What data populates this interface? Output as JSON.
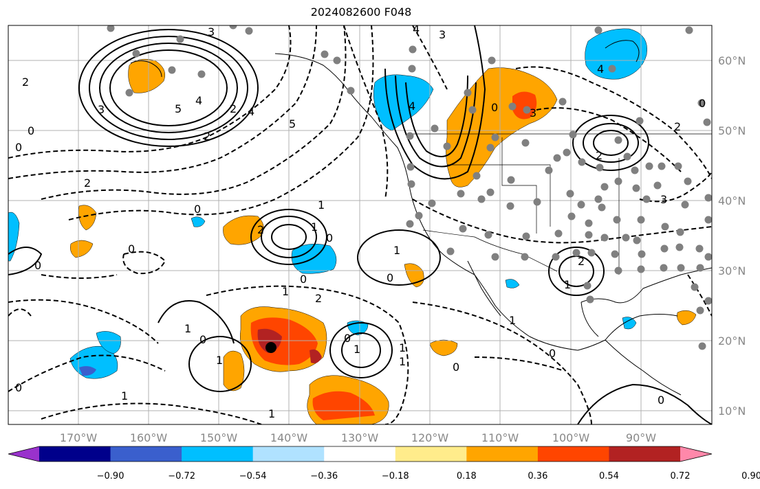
{
  "title": "2024082600 F048",
  "lon_ticks": [
    "170°W",
    "160°W",
    "150°W",
    "140°W",
    "130°W",
    "120°W",
    "110°W",
    "100°W",
    "90°W"
  ],
  "lat_ticks": [
    "60°N",
    "50°N",
    "40°N",
    "30°N",
    "20°N",
    "10°N"
  ],
  "colorbar": {
    "labels": [
      "−0.90",
      "−0.72",
      "−0.54",
      "−0.36",
      "−0.18",
      "0.18",
      "0.36",
      "0.54",
      "0.72",
      "0.90"
    ],
    "colors": [
      "#9932cc",
      "#00008b",
      "#3a5fcd",
      "#00bfff",
      "#b0e2ff",
      "#ffffff",
      "#ffec8b",
      "#ffa500",
      "#ff4500",
      "#b22222",
      "#ff88aa"
    ]
  },
  "contour_labels": [
    "3",
    "3",
    "5",
    "4",
    "0",
    "2",
    "2",
    "2",
    "2",
    "4",
    "5",
    "4",
    "3",
    "4",
    "0",
    "3",
    "0",
    "2",
    "0",
    "2",
    "0",
    "1",
    "0",
    "1",
    "1",
    "1",
    "2",
    "0",
    "0",
    "0",
    "1",
    "1",
    "2",
    "1",
    "0",
    "0",
    "1",
    "1",
    "0",
    "1",
    "1",
    "1",
    "0",
    "0",
    "0",
    "2",
    "3",
    "4",
    "0",
    "1"
  ]
}
